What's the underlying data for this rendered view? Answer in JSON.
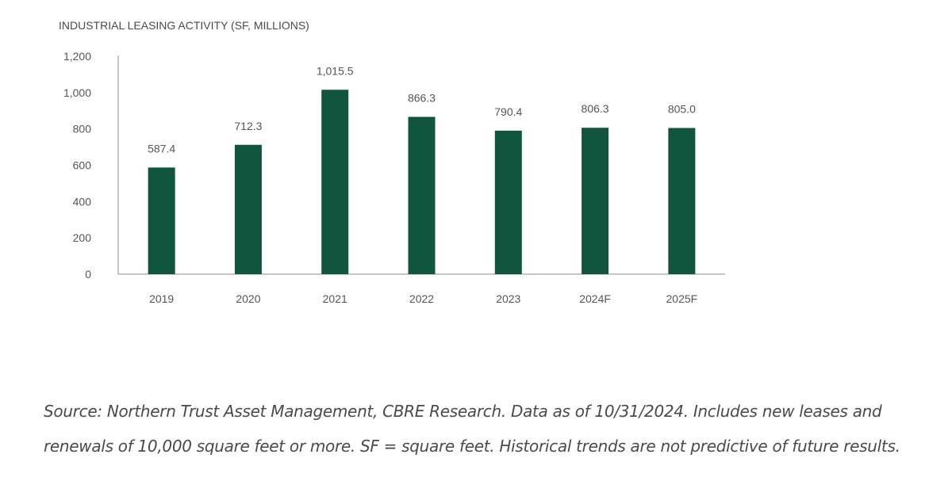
{
  "chart_data": {
    "type": "bar",
    "title": "INDUSTRIAL LEASING ACTIVITY (SF, MILLIONS)",
    "xlabel": "",
    "ylabel": "",
    "categories": [
      "2019",
      "2020",
      "2021",
      "2022",
      "2023",
      "2024F",
      "2025F"
    ],
    "values": [
      587.4,
      712.3,
      1015.5,
      866.3,
      790.4,
      806.3,
      805.0
    ],
    "value_labels": [
      "587.4",
      "712.3",
      "1,015.5",
      "866.3",
      "790.4",
      "806.3",
      "805.0"
    ],
    "ylim": [
      0,
      1200
    ],
    "yticks": [
      0,
      200,
      400,
      600,
      800,
      1000,
      1200
    ],
    "ytick_labels": [
      "0",
      "200",
      "400",
      "600",
      "800",
      "1,000",
      "1,200"
    ],
    "bar_color": "#11553f",
    "grid": false,
    "legend": "none"
  },
  "source_note": "Source: Northern Trust Asset Management, CBRE Research. Data as of 10/31/2024. Includes new leases and renewals of 10,000 square feet or more. SF = square feet. Historical trends are not predictive of future results."
}
